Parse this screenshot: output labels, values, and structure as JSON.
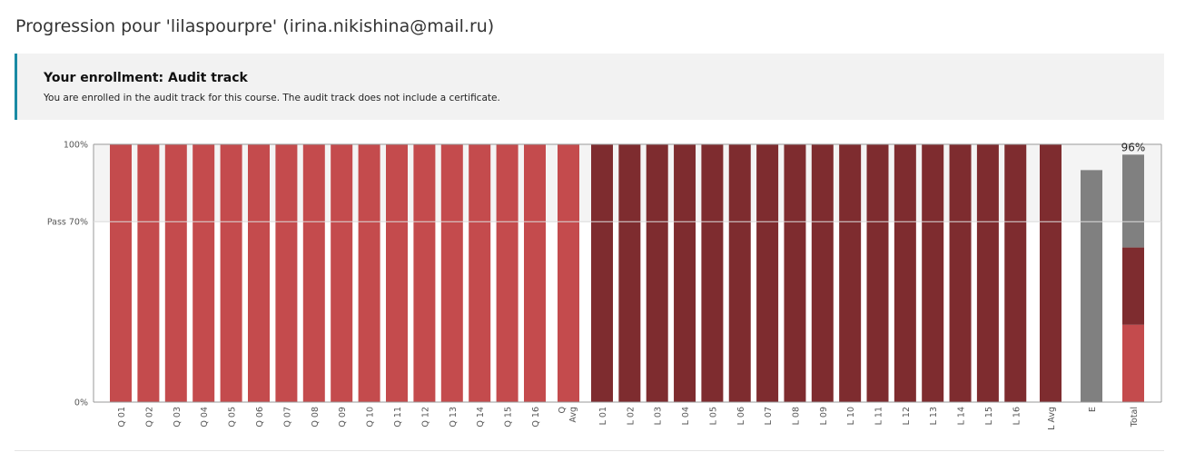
{
  "page": {
    "title": "Progression pour 'lilaspourpre' (irina.nikishina@mail.ru)"
  },
  "enrollment": {
    "title": "Your enrollment: Audit track",
    "message": "You are enrolled in the audit track for this course. The audit track does not include a certificate."
  },
  "chart_data": {
    "type": "bar",
    "title": "",
    "xlabel": "",
    "ylabel": "",
    "ylim": [
      0,
      100
    ],
    "grid": false,
    "y_ticks": [
      {
        "value": 0,
        "label": "0%"
      },
      {
        "value": 70,
        "label": "Pass 70%"
      },
      {
        "value": 100,
        "label": "100%"
      }
    ],
    "pass_value": 70,
    "categories": [
      "Q 01",
      "Q 02",
      "Q 03",
      "Q 04",
      "Q 05",
      "Q 06",
      "Q 07",
      "Q 08",
      "Q 09",
      "Q 10",
      "Q 11",
      "Q 12",
      "Q 13",
      "Q 14",
      "Q 15",
      "Q 16",
      "Q Avg",
      "L 01",
      "L 02",
      "L 03",
      "L 04",
      "L 05",
      "L 06",
      "L 07",
      "L 08",
      "L 09",
      "L 10",
      "L 11",
      "L 12",
      "L 13",
      "L 14",
      "L 15",
      "L 16",
      "L Avg",
      "E",
      "Total"
    ],
    "values": [
      100,
      100,
      100,
      100,
      100,
      100,
      100,
      100,
      100,
      100,
      100,
      100,
      100,
      100,
      100,
      100,
      100,
      100,
      100,
      100,
      100,
      100,
      100,
      100,
      100,
      100,
      100,
      100,
      100,
      100,
      100,
      100,
      100,
      100,
      90,
      96
    ],
    "groups": [
      "Q",
      "Q",
      "Q",
      "Q",
      "Q",
      "Q",
      "Q",
      "Q",
      "Q",
      "Q",
      "Q",
      "Q",
      "Q",
      "Q",
      "Q",
      "Q",
      "Q",
      "L",
      "L",
      "L",
      "L",
      "L",
      "L",
      "L",
      "L",
      "L",
      "L",
      "L",
      "L",
      "L",
      "L",
      "L",
      "L",
      "L",
      "E",
      "Total"
    ],
    "total": {
      "label": "96%",
      "stack": [
        {
          "group": "Q",
          "value": 30
        },
        {
          "group": "L",
          "value": 30
        },
        {
          "group": "E",
          "value": 36
        }
      ]
    },
    "colors": {
      "Q": "#c44b4d",
      "L": "#7e2c2f",
      "E": "#808080",
      "shaded_background": "#f4f4f4",
      "axis": "#999999"
    }
  }
}
